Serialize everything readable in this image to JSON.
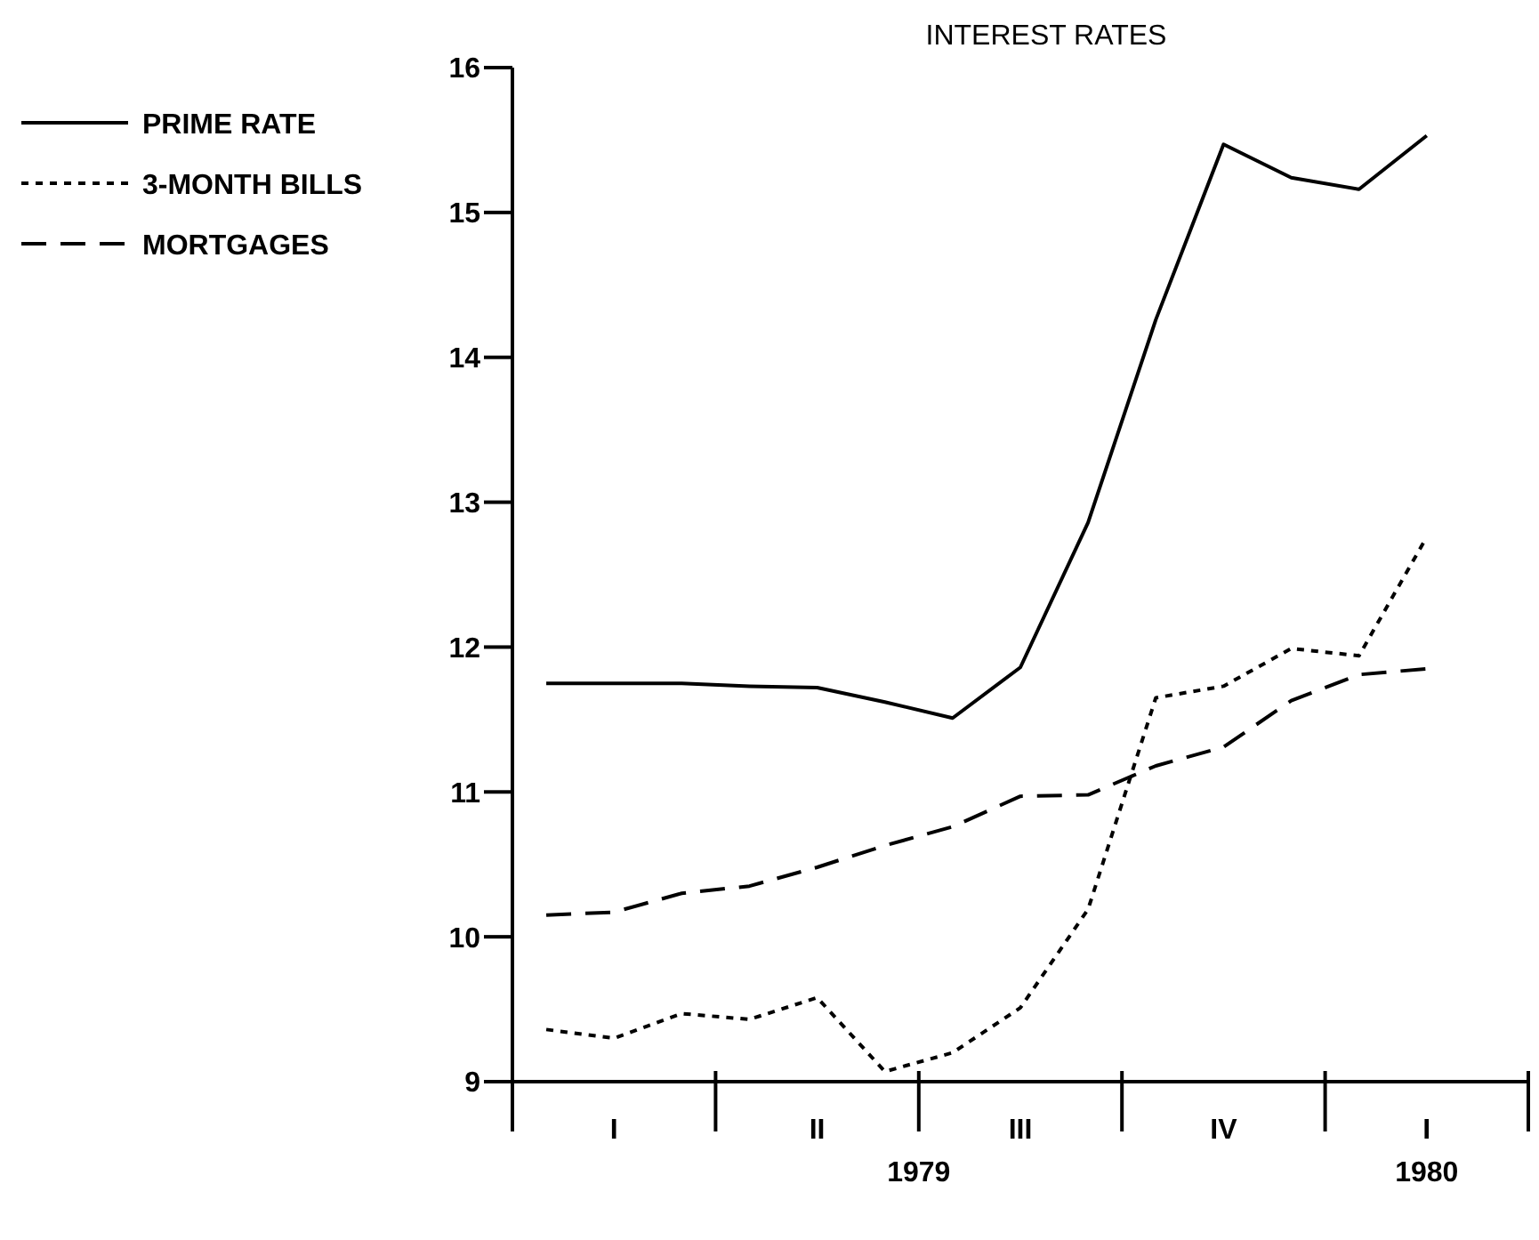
{
  "chart_data": {
    "type": "line",
    "title": "INTEREST RATES",
    "categories": [
      null,
      "I",
      null,
      null,
      "II",
      null,
      null,
      "III",
      null,
      null,
      "IV",
      null,
      null,
      "I"
    ],
    "series": [
      {
        "name": "PRIME RATE",
        "color": "#000000",
        "line_style": "solid",
        "values": [
          11.75,
          11.75,
          11.75,
          11.73,
          11.72,
          11.62,
          11.51,
          11.86,
          12.86,
          14.26,
          15.47,
          15.24,
          15.16,
          15.53
        ]
      },
      {
        "name": "3-MONTH BILLS",
        "color": "#000000",
        "line_style": "dotted",
        "values": [
          9.36,
          9.3,
          9.47,
          9.43,
          9.58,
          9.07,
          9.2,
          9.51,
          10.19,
          11.65,
          11.73,
          11.99,
          11.94,
          12.76
        ]
      },
      {
        "name": "MORTGAGES",
        "color": "#000000",
        "line_style": "dashed",
        "values": [
          10.15,
          10.17,
          10.3,
          10.35,
          10.48,
          10.63,
          10.76,
          10.97,
          10.98,
          11.18,
          11.31,
          11.63,
          11.81,
          11.85
        ]
      }
    ],
    "annotations": [
      {
        "text": "1979"
      },
      "1980"
    ],
    "ylim": [
      9,
      16
    ],
    "yticks": [
      9,
      10,
      11,
      12,
      13,
      14,
      15,
      16
    ],
    "grid": false,
    "legend": "top left",
    "marker": "none"
  }
}
